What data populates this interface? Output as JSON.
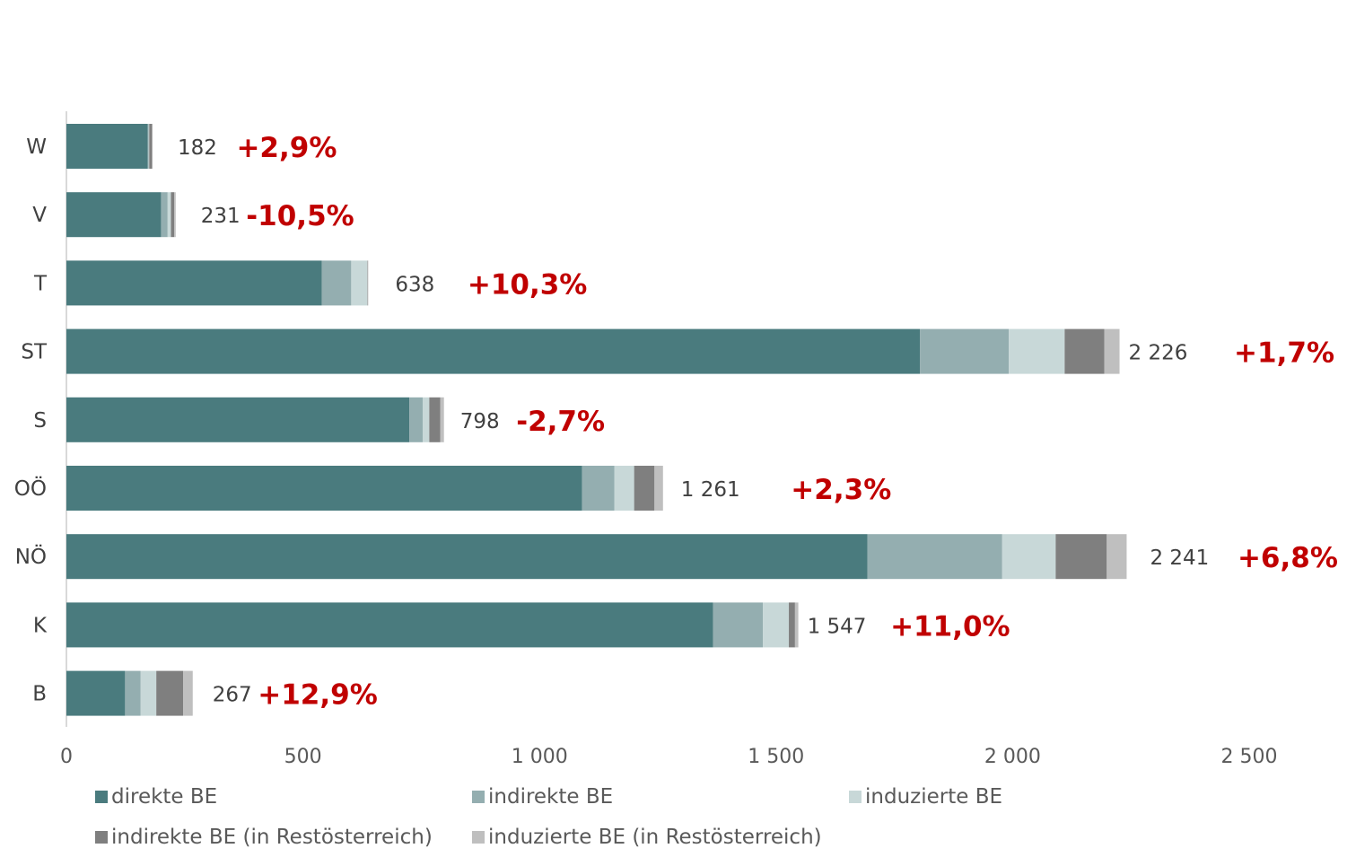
{
  "chart_data": {
    "type": "bar",
    "orientation": "horizontal",
    "stacked": true,
    "categories": [
      "W",
      "V",
      "T",
      "ST",
      "S",
      "OÖ",
      "NÖ",
      "K",
      "B"
    ],
    "series": [
      {
        "name": "direkte BE",
        "color": "#4a7b7e",
        "values": [
          172,
          200,
          540,
          1804,
          725,
          1090,
          1693,
          1367,
          124
        ]
      },
      {
        "name": "indirekte BE",
        "color": "#94aeb0",
        "values": [
          2,
          14,
          62,
          188,
          28,
          68,
          285,
          105,
          33
        ]
      },
      {
        "name": "induzierte BE",
        "color": "#c8d8d8",
        "values": [
          1,
          7,
          34,
          118,
          14,
          42,
          113,
          55,
          33
        ]
      },
      {
        "name": "indirekte BE (in Restösterreich)",
        "color": "#7f7f7f",
        "values": [
          6,
          7,
          1,
          84,
          23,
          43,
          108,
          13,
          57
        ]
      },
      {
        "name": "induzierte BE (in Restösterreich)",
        "color": "#bfbfbf",
        "values": [
          1,
          3,
          1,
          32,
          8,
          18,
          42,
          7,
          20
        ]
      }
    ],
    "totals": [
      "182",
      "231",
      "638",
      "2 226",
      "798",
      "1 261",
      "2 241",
      "1 547",
      "267"
    ],
    "changes": [
      "+2,9%",
      "-10,5%",
      "+10,3%",
      "+1,7%",
      "-2,7%",
      "+2,3%",
      "+6,8%",
      "+11,0%",
      "+12,9%"
    ],
    "xlim": [
      0,
      2500
    ],
    "xticks": [
      0,
      500,
      1000,
      1500,
      2000,
      2500
    ],
    "xtick_labels": [
      "0",
      "500",
      "1 000",
      "1 500",
      "2 000",
      "2 500"
    ],
    "title": "",
    "xlabel": "",
    "ylabel": "",
    "grid": false,
    "legend_position": "bottom",
    "change_color": "#c00000"
  }
}
